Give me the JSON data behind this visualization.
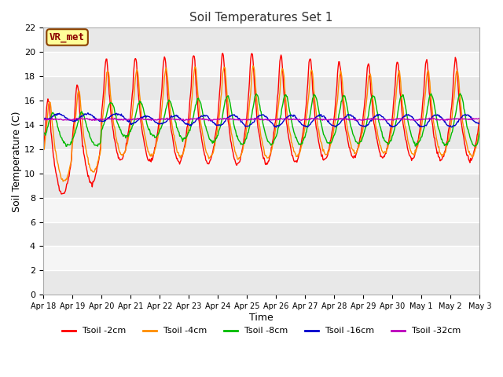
{
  "title": "Soil Temperatures Set 1",
  "xlabel": "Time",
  "ylabel": "Soil Temperature (C)",
  "ylim": [
    0,
    22
  ],
  "yticks": [
    0,
    2,
    4,
    6,
    8,
    10,
    12,
    14,
    16,
    18,
    20,
    22
  ],
  "date_labels": [
    "Apr 18",
    "Apr 19",
    "Apr 20",
    "Apr 21",
    "Apr 22",
    "Apr 23",
    "Apr 24",
    "Apr 25",
    "Apr 26",
    "Apr 27",
    "Apr 28",
    "Apr 29",
    "Apr 30",
    "May 1",
    "May 2",
    "May 3"
  ],
  "series_names": [
    "Tsoil -2cm",
    "Tsoil -4cm",
    "Tsoil -8cm",
    "Tsoil -16cm",
    "Tsoil -32cm"
  ],
  "colors": [
    "#FF0000",
    "#FF8C00",
    "#00BB00",
    "#0000CC",
    "#BB00BB"
  ],
  "annotation_text": "VR_met",
  "annotation_fg": "#8B0000",
  "annotation_bg": "#FFFF99",
  "annotation_border": "#8B4000",
  "fig_bg": "#E8E8E8",
  "plot_bg_light": "#F0F0F0",
  "plot_bg_dark": "#E0E0E0",
  "grid_color": "#CCCCCC",
  "n_points": 720,
  "n_days": 15,
  "base_temp": 14.5
}
